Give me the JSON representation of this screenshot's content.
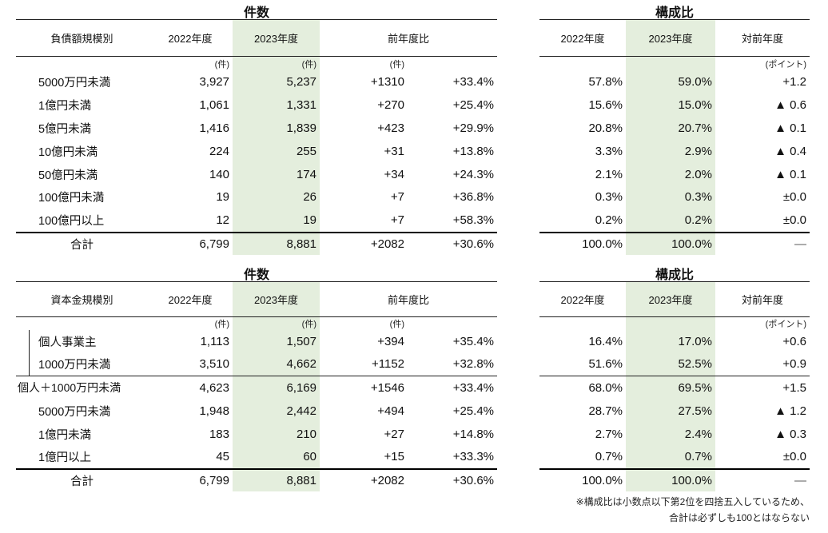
{
  "colors": {
    "highlight_green": "#e4eedd",
    "line": "#1f1f1f",
    "background": "#ffffff"
  },
  "tables": [
    {
      "id": "debt-counts",
      "kind": "counts",
      "title": "件数",
      "label_header": "負債額規模別",
      "year_headers": [
        "2022年度",
        "2023年度"
      ],
      "change_header": "前年度比",
      "units": [
        "(件)",
        "(件)",
        "(件)"
      ],
      "rows": [
        {
          "label": "5000万円未満",
          "v2022": "3,927",
          "v2023": "5,237",
          "diff": "+1310",
          "pct": "+33.4%"
        },
        {
          "label": "1億円未満",
          "v2022": "1,061",
          "v2023": "1,331",
          "diff": "+270",
          "pct": "+25.4%"
        },
        {
          "label": "5億円未満",
          "v2022": "1,416",
          "v2023": "1,839",
          "diff": "+423",
          "pct": "+29.9%"
        },
        {
          "label": "10億円未満",
          "v2022": "224",
          "v2023": "255",
          "diff": "+31",
          "pct": "+13.8%"
        },
        {
          "label": "50億円未満",
          "v2022": "140",
          "v2023": "174",
          "diff": "+34",
          "pct": "+24.3%"
        },
        {
          "label": "100億円未満",
          "v2022": "19",
          "v2023": "26",
          "diff": "+7",
          "pct": "+36.8%"
        },
        {
          "label": "100億円以上",
          "v2022": "12",
          "v2023": "19",
          "diff": "+7",
          "pct": "+58.3%"
        },
        {
          "label": "合計",
          "v2022": "6,799",
          "v2023": "8,881",
          "diff": "+2082",
          "pct": "+30.6%",
          "total": true
        }
      ]
    },
    {
      "id": "debt-ratio",
      "kind": "ratio",
      "title": "構成比",
      "year_headers": [
        "2022年度",
        "2023年度"
      ],
      "change_header": "対前年度",
      "unit": "(ポイント)",
      "rows": [
        {
          "v2022": "57.8%",
          "v2023": "59.0%",
          "delta": "+1.2"
        },
        {
          "v2022": "15.6%",
          "v2023": "15.0%",
          "delta": "▲ 0.6"
        },
        {
          "v2022": "20.8%",
          "v2023": "20.7%",
          "delta": "▲ 0.1"
        },
        {
          "v2022": "3.3%",
          "v2023": "2.9%",
          "delta": "▲ 0.4"
        },
        {
          "v2022": "2.1%",
          "v2023": "2.0%",
          "delta": "▲ 0.1"
        },
        {
          "v2022": "0.3%",
          "v2023": "0.3%",
          "delta": "±0.0"
        },
        {
          "v2022": "0.2%",
          "v2023": "0.2%",
          "delta": "±0.0"
        },
        {
          "v2022": "100.0%",
          "v2023": "100.0%",
          "delta": "—",
          "total": true
        }
      ]
    },
    {
      "id": "capital-counts",
      "kind": "counts",
      "title": "件数",
      "label_header": "資本金規模別",
      "year_headers": [
        "2022年度",
        "2023年度"
      ],
      "change_header": "前年度比",
      "units": [
        "(件)",
        "(件)",
        "(件)"
      ],
      "rows": [
        {
          "label": "個人事業主",
          "v2022": "1,113",
          "v2023": "1,507",
          "diff": "+394",
          "pct": "+35.4%",
          "bracket": true
        },
        {
          "label": "1000万円未満",
          "v2022": "3,510",
          "v2023": "4,662",
          "diff": "+1152",
          "pct": "+32.8%",
          "bracket": true,
          "divider": true
        },
        {
          "label": "個人＋1000万円未満",
          "v2022": "4,623",
          "v2023": "6,169",
          "diff": "+1546",
          "pct": "+33.4%",
          "flush": true
        },
        {
          "label": "5000万円未満",
          "v2022": "1,948",
          "v2023": "2,442",
          "diff": "+494",
          "pct": "+25.4%"
        },
        {
          "label": "1億円未満",
          "v2022": "183",
          "v2023": "210",
          "diff": "+27",
          "pct": "+14.8%"
        },
        {
          "label": "1億円以上",
          "v2022": "45",
          "v2023": "60",
          "diff": "+15",
          "pct": "+33.3%"
        },
        {
          "label": "合計",
          "v2022": "6,799",
          "v2023": "8,881",
          "diff": "+2082",
          "pct": "+30.6%",
          "total": true
        }
      ]
    },
    {
      "id": "capital-ratio",
      "kind": "ratio",
      "title": "構成比",
      "year_headers": [
        "2022年度",
        "2023年度"
      ],
      "change_header": "対前年度",
      "unit": "(ポイント)",
      "rows": [
        {
          "v2022": "16.4%",
          "v2023": "17.0%",
          "delta": "+0.6"
        },
        {
          "v2022": "51.6%",
          "v2023": "52.5%",
          "delta": "+0.9",
          "divider": true
        },
        {
          "v2022": "68.0%",
          "v2023": "69.5%",
          "delta": "+1.5"
        },
        {
          "v2022": "28.7%",
          "v2023": "27.5%",
          "delta": "▲ 1.2"
        },
        {
          "v2022": "2.7%",
          "v2023": "2.4%",
          "delta": "▲ 0.3"
        },
        {
          "v2022": "0.7%",
          "v2023": "0.7%",
          "delta": "±0.0"
        },
        {
          "v2022": "100.0%",
          "v2023": "100.0%",
          "delta": "—",
          "total": true
        }
      ]
    }
  ],
  "footnote": {
    "line1": "※構成比は小数点以下第2位を四捨五入しているため、",
    "line2": "合計は必ずしも100とはならない"
  }
}
